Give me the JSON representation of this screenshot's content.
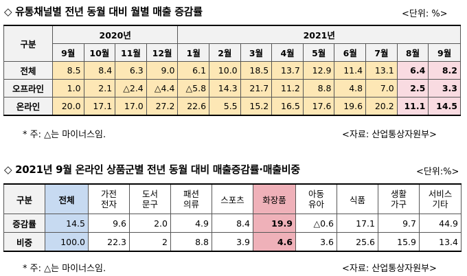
{
  "section1": {
    "title": "◇ 유통채널별 전년 동월 대비 월별 매출 증감률",
    "unit": "<단위: %>",
    "corner": "구분",
    "year_2020": "2020년",
    "year_2021": "2021년",
    "months": [
      "9월",
      "10월",
      "11월",
      "12월",
      "1월",
      "2월",
      "3월",
      "4월",
      "5월",
      "6월",
      "7월",
      "8월",
      "9월"
    ],
    "rows": [
      {
        "label": "전체",
        "values": [
          "8.5",
          "8.4",
          "6.3",
          "9.0",
          "6.1",
          "10.0",
          "18.5",
          "13.7",
          "12.9",
          "11.4",
          "13.1",
          "6.4",
          "8.2"
        ]
      },
      {
        "label": "오프라인",
        "values": [
          "1.0",
          "2.1",
          "△2.4",
          "△4.4",
          "△5.8",
          "14.3",
          "21.7",
          "11.2",
          "8.8",
          "4.8",
          "7.0",
          "2.5",
          "3.3"
        ]
      },
      {
        "label": "온라인",
        "values": [
          "20.0",
          "17.1",
          "17.0",
          "27.2",
          "22.6",
          "5.5",
          "15.2",
          "16.5",
          "17.6",
          "19.6",
          "20.2",
          "11.1",
          "14.5"
        ]
      }
    ],
    "note": "* 주: △는 마이너스임.",
    "source": "<자료: 산업통상자원부>"
  },
  "section2": {
    "title": "◇ 2021년 9월 온라인 상품군별 전년 동월 대비 매출증감률·매출비중",
    "unit": "<단위:%>",
    "headers": [
      "구분",
      "전체",
      "가전\n전자",
      "도서\n문구",
      "패션\n의류",
      "스포츠",
      "화장품",
      "아동\n유아",
      "식품",
      "생활\n가구",
      "서비스\n기타"
    ],
    "rows": [
      {
        "label": "증감률",
        "values": [
          "14.5",
          "9.6",
          "2.0",
          "4.9",
          "8.4",
          "19.9",
          "△0.6",
          "17.1",
          "9.7",
          "44.9"
        ]
      },
      {
        "label": "비중",
        "values": [
          "100.0",
          "22.3",
          "2",
          "8.8",
          "3.9",
          "4.6",
          "3.6",
          "25.6",
          "15.9",
          "13.4"
        ]
      }
    ],
    "note": "* 주: △는 마이너스임.",
    "source": "<자료: 산업통상자원부>"
  }
}
